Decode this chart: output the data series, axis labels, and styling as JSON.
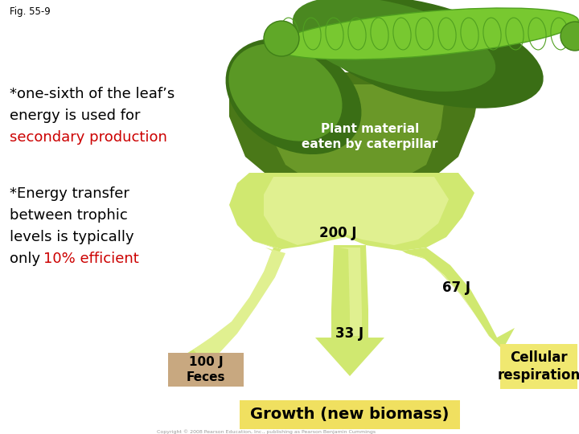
{
  "fig_label": "Fig. 55-9",
  "bg_color": "#ffffff",
  "text1_line1": "*one-sixth of the leaf’s",
  "text1_line2": "energy is used for",
  "text1_line3_red": "secondary production",
  "text1_color_red": "#cc0000",
  "text2_line1": "*Energy transfer",
  "text2_line2": "between trophic",
  "text2_line3": "levels is typically",
  "text2_line4_black": "only ",
  "text2_line4_red": "10% efficient",
  "plant_label_white": "Plant material\neaten by caterpillar",
  "arrow_color_mid": "#b0d040",
  "arrow_color_light": "#d0e870",
  "arrow_color_lightest": "#e0f090",
  "arrow_color_dark": "#88aa20",
  "leaf_dark": "#3a6e10",
  "leaf_mid": "#5a9820",
  "leaf_light": "#7ab830",
  "label_200J": "200 J",
  "label_67J": "67 J",
  "label_33J": "33 J",
  "label_100J_line1": "100 J",
  "label_100J_line2": "Feces",
  "box_feces_color": "#c8a880",
  "box_growth_color": "#f0e060",
  "box_cellular_color": "#f0e870",
  "label_growth": "Growth (new biomass)",
  "label_cellular_line1": "Cellular",
  "label_cellular_line2": "respiration",
  "copyright": "Copyright © 2008 Pearson Education, Inc., publishing as Pearson Benjamin Cummings"
}
